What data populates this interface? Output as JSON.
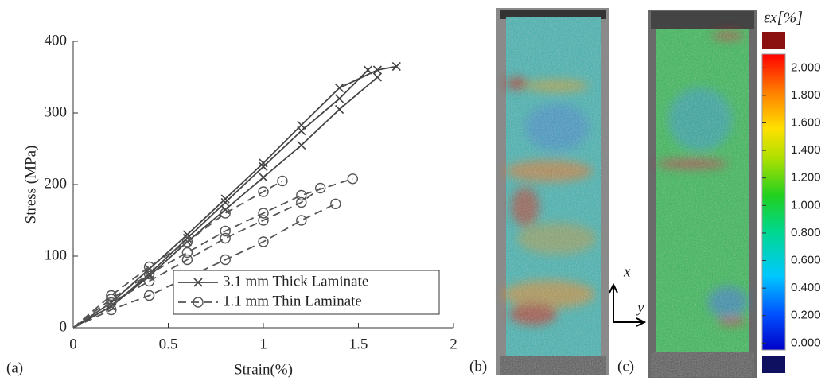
{
  "chart_data": {
    "type": "line",
    "xlabel": "Strain(%)",
    "ylabel": "Stress (MPa)",
    "xlim": [
      0,
      2
    ],
    "ylim": [
      0,
      400
    ],
    "xticks": [
      0,
      0.5,
      1,
      1.5,
      2
    ],
    "yticks": [
      0,
      100,
      200,
      300,
      400
    ],
    "legend": "lower right",
    "series": [
      {
        "name": "3.1 mm Thick Laminate",
        "color": "#444444",
        "dashed": false,
        "marker": "x",
        "curves": [
          {
            "x": [
              0,
              0.2,
              0.4,
              0.6,
              0.8,
              1.0,
              1.2,
              1.4,
              1.55
            ],
            "values": [
              0,
              30,
              75,
              125,
              175,
              225,
              275,
              320,
              360
            ]
          },
          {
            "x": [
              0,
              0.2,
              0.4,
              0.6,
              0.8,
              1.0,
              1.2,
              1.4,
              1.6
            ],
            "values": [
              0,
              30,
              72,
              120,
              165,
              210,
              255,
              305,
              350
            ]
          },
          {
            "x": [
              0,
              0.2,
              0.4,
              0.6,
              0.8,
              1.0,
              1.2,
              1.4,
              1.6,
              1.7
            ],
            "values": [
              0,
              35,
              82,
              130,
              180,
              230,
              283,
              335,
              360,
              365
            ]
          }
        ]
      },
      {
        "name": "1.1 mm Thin Laminate",
        "color": "#555555",
        "dashed": true,
        "marker": "circle",
        "curves": [
          {
            "x": [
              0,
              0.2,
              0.4,
              0.6,
              0.8,
              1.0,
              1.1
            ],
            "values": [
              0,
              45,
              85,
              120,
              160,
              190,
              205
            ]
          },
          {
            "x": [
              0,
              0.2,
              0.4,
              0.6,
              0.8,
              1.0,
              1.2,
              1.47
            ],
            "values": [
              0,
              40,
              75,
              105,
              135,
              160,
              185,
              208
            ]
          },
          {
            "x": [
              0,
              0.2,
              0.4,
              0.6,
              0.8,
              1.0,
              1.2,
              1.3
            ],
            "values": [
              0,
              35,
              65,
              95,
              125,
              150,
              175,
              195
            ]
          },
          {
            "x": [
              0,
              0.2,
              0.4,
              0.6,
              0.8,
              1.0,
              1.2,
              1.38
            ],
            "values": [
              0,
              25,
              45,
              70,
              95,
              120,
              150,
              173
            ]
          }
        ]
      }
    ]
  },
  "figure": {
    "panel_labels": [
      "(a)",
      "(b)",
      "(c)"
    ],
    "axis_x": "x",
    "axis_y": "y",
    "colorbar": {
      "title": "εx[%]",
      "clim": [
        -0.05,
        2.1
      ],
      "ticks": [
        {
          "value": 0,
          "label": "0.000"
        },
        {
          "value": 0.2,
          "label": "0.200"
        },
        {
          "value": 0.4,
          "label": "0.400"
        },
        {
          "value": 0.6,
          "label": "0.600"
        },
        {
          "value": 0.8,
          "label": "0.800"
        },
        {
          "value": 1,
          "label": "1.000"
        },
        {
          "value": 1.2,
          "label": "1.200"
        },
        {
          "value": 1.4,
          "label": "1.400"
        },
        {
          "value": 1.6,
          "label": "1.600"
        },
        {
          "value": 1.8,
          "label": "1.800"
        },
        {
          "value": 2,
          "label": "2.000"
        }
      ]
    }
  }
}
